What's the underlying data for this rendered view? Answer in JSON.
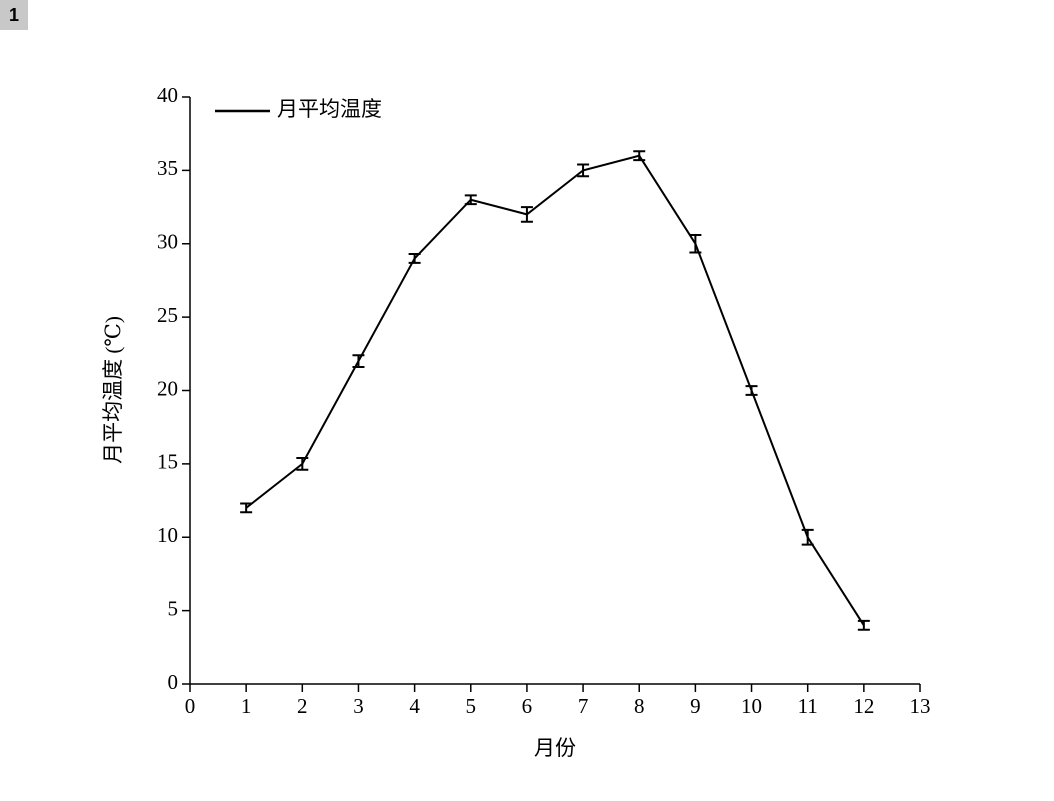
{
  "badge": "1",
  "chart_data": {
    "type": "line",
    "xlabel": "月份",
    "ylabel": "月平均温度 (℃)",
    "x": [
      1,
      2,
      3,
      4,
      5,
      6,
      7,
      8,
      9,
      10,
      11,
      12
    ],
    "series": [
      {
        "name": "月平均温度",
        "color": "#000000",
        "values": [
          12,
          15,
          22,
          29,
          33,
          32,
          35,
          36,
          30,
          20,
          10,
          4
        ],
        "errors": [
          0.3,
          0.4,
          0.4,
          0.3,
          0.3,
          0.5,
          0.4,
          0.3,
          0.6,
          0.3,
          0.5,
          0.3
        ]
      }
    ],
    "xlim": [
      0,
      13
    ],
    "xticks": [
      0,
      1,
      2,
      3,
      4,
      5,
      6,
      7,
      8,
      9,
      10,
      11,
      12,
      13
    ],
    "ylim": [
      0,
      40
    ],
    "yticks": [
      0,
      5,
      10,
      15,
      20,
      25,
      30,
      35,
      40
    ],
    "grid": false,
    "legend": "upper left"
  }
}
